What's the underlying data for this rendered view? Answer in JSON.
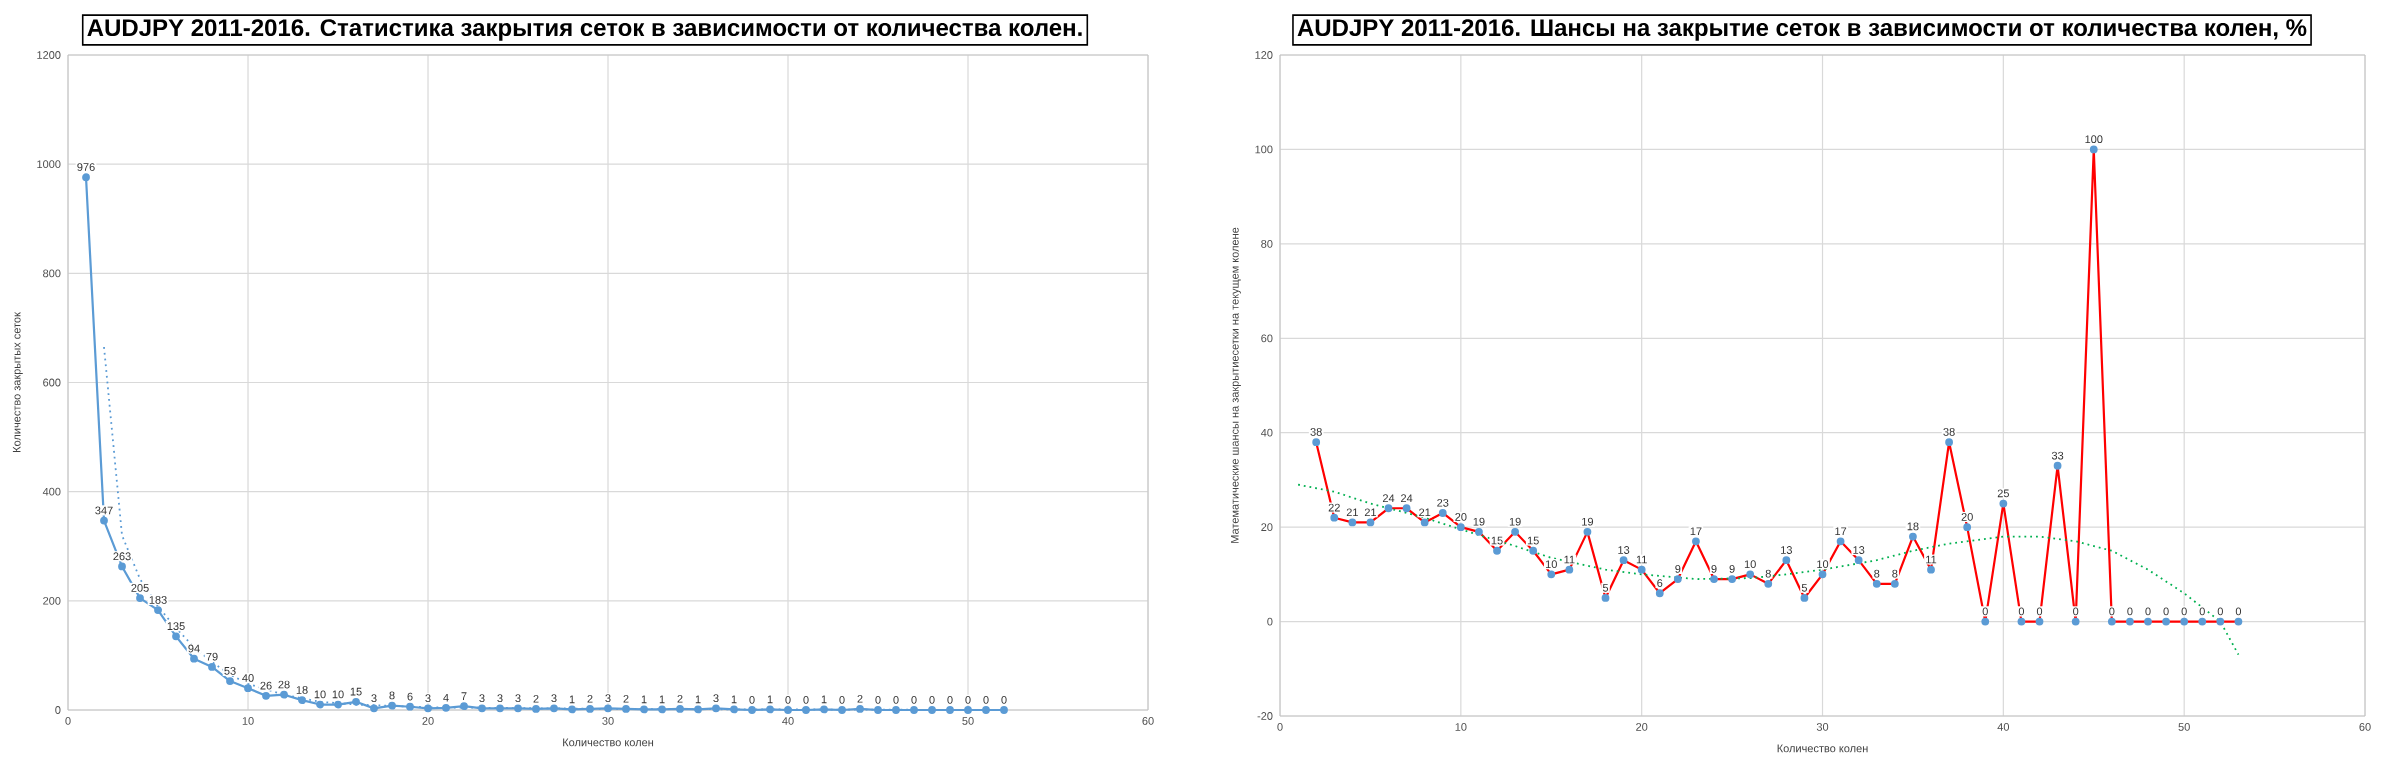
{
  "chart_data": [
    {
      "type": "line",
      "title": "AUDJPY 2011-2016. Статистика закрытия сеток в зависимости от количества колен.",
      "xlabel": "Количество колен",
      "ylabel": "Количество закрытых сеток",
      "x": [
        1,
        2,
        3,
        4,
        5,
        6,
        7,
        8,
        9,
        10,
        11,
        12,
        13,
        14,
        15,
        16,
        17,
        18,
        19,
        20,
        21,
        22,
        23,
        24,
        25,
        26,
        27,
        28,
        29,
        30,
        31,
        32,
        33,
        34,
        35,
        36,
        37,
        38,
        39,
        40,
        41,
        42,
        43,
        44,
        45,
        46,
        47,
        48,
        49,
        50,
        51,
        52
      ],
      "xlim": [
        0,
        60
      ],
      "xticks": [
        0,
        10,
        20,
        30,
        40,
        50,
        60
      ],
      "ylim": [
        0,
        1200
      ],
      "yticks": [
        0,
        200,
        400,
        600,
        800,
        1000,
        1200
      ],
      "grid": true,
      "series": [
        {
          "color": "#5b9bd5",
          "marker": "circle",
          "line_style": "solid",
          "values": [
            976,
            347,
            263,
            205,
            183,
            135,
            94,
            79,
            53,
            40,
            26,
            28,
            18,
            10,
            10,
            15,
            3,
            8,
            6,
            3,
            4,
            7,
            3,
            3,
            3,
            2,
            3,
            1,
            2,
            3,
            2,
            1,
            1,
            2,
            1,
            3,
            1,
            0,
            1,
            0,
            0,
            1,
            0,
            2,
            0,
            0,
            0,
            0,
            0,
            0,
            0,
            0
          ],
          "value_labels": [
            "976",
            "347",
            "263",
            "205",
            "183",
            "135",
            "94",
            "79",
            "53",
            "40",
            "26",
            "28",
            "18",
            "10",
            "10",
            "15",
            "3",
            "8",
            "6",
            "3",
            "4",
            "7",
            "3",
            "3",
            "3",
            "2",
            "3",
            "1",
            "2",
            "3",
            "2",
            "1",
            "1",
            "2",
            "1",
            "3",
            "1",
            "0",
            "1",
            "0",
            "0",
            "1",
            "0",
            "2",
            "0",
            "0",
            "0",
            "0",
            "0",
            "0",
            "0",
            "0"
          ]
        },
        {
          "type": "line",
          "color": "#5b9bd5",
          "marker": "none",
          "line_style": "dotted",
          "x": [
            2,
            3,
            4,
            5,
            6,
            7,
            8,
            9,
            10,
            12,
            14,
            16,
            20,
            30,
            40,
            52
          ],
          "values": [
            665,
            320,
            240,
            190,
            150,
            115,
            88,
            65,
            48,
            28,
            15,
            10,
            5,
            2,
            1,
            0
          ]
        }
      ]
    },
    {
      "type": "line",
      "title": "AUDJPY 2011-2016. Шансы на закрытие сеток в зависимости от количества колен, %",
      "xlabel": "Количество колен",
      "ylabel": "Математические шансы на закрытиесетки на текущем колене",
      "x": [
        2,
        3,
        4,
        5,
        6,
        7,
        8,
        9,
        10,
        11,
        12,
        13,
        14,
        15,
        16,
        17,
        18,
        19,
        20,
        21,
        22,
        23,
        24,
        25,
        26,
        27,
        28,
        29,
        30,
        31,
        32,
        33,
        34,
        35,
        36,
        37,
        38,
        39,
        40,
        41,
        42,
        43,
        44,
        45,
        46,
        47,
        48,
        49,
        50,
        51,
        52,
        53
      ],
      "xlim": [
        0,
        60
      ],
      "xticks": [
        0,
        10,
        20,
        30,
        40,
        50,
        60
      ],
      "ylim": [
        -20,
        120
      ],
      "yticks": [
        -20,
        0,
        20,
        40,
        60,
        80,
        100,
        120
      ],
      "grid": true,
      "series": [
        {
          "color": "#ff0000",
          "marker": "circle",
          "line_style": "solid",
          "values": [
            38,
            22,
            21,
            21,
            24,
            24,
            21,
            23,
            20,
            19,
            15,
            19,
            15,
            10,
            11,
            19,
            5,
            13,
            11,
            6,
            9,
            17,
            9,
            9,
            10,
            8,
            13,
            5,
            10,
            17,
            13,
            8,
            8,
            18,
            11,
            38,
            20,
            0,
            25,
            0,
            0,
            33,
            0,
            100,
            0,
            0,
            0,
            0,
            0,
            0,
            0,
            0
          ],
          "value_labels": [
            "38",
            "22",
            "21",
            "21",
            "24",
            "24",
            "21",
            "23",
            "20",
            "19",
            "15",
            "19",
            "15",
            "10",
            "11",
            "19",
            "5",
            "13",
            "11",
            "6",
            "9",
            "17",
            "9",
            "9",
            "10",
            "8",
            "13",
            "5",
            "10",
            "17",
            "13",
            "8",
            "8",
            "18",
            "11",
            "38",
            "20",
            "0",
            "25",
            "0",
            "0",
            "33",
            "0",
            "100",
            "0",
            "0",
            "0",
            "0",
            "0",
            "0",
            "0",
            "0"
          ]
        },
        {
          "type": "line",
          "color": "#00b050",
          "marker": "none",
          "line_style": "dotted",
          "x": [
            1,
            3,
            5,
            8,
            10,
            13,
            15,
            18,
            20,
            23,
            26,
            28,
            30,
            33,
            35,
            37,
            40,
            42,
            44,
            46,
            48,
            50,
            52,
            53
          ],
          "values": [
            29,
            27.5,
            25,
            22,
            19.5,
            16,
            13.5,
            11,
            10,
            9,
            9.2,
            10,
            11,
            13,
            15,
            16.5,
            18,
            18,
            17,
            15,
            11,
            6,
            0,
            -7
          ]
        }
      ]
    }
  ]
}
